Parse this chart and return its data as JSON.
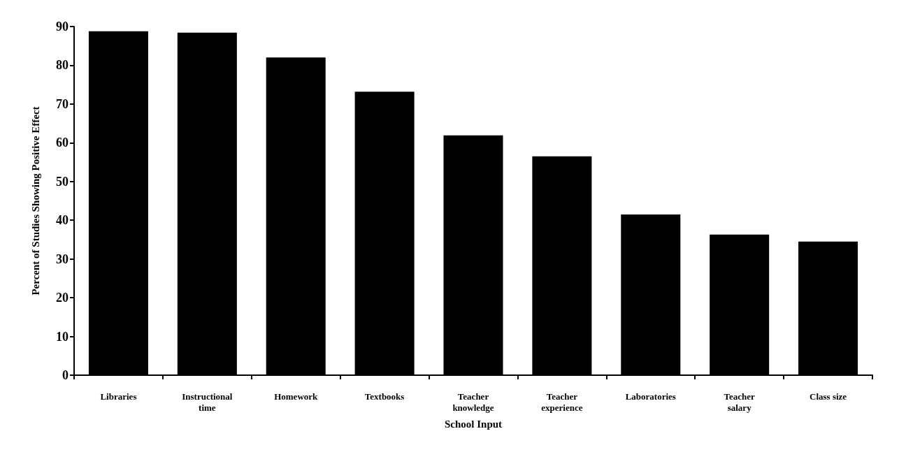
{
  "chart_data": {
    "type": "bar",
    "xlabel": "School Input",
    "ylabel": "Percent of Studies Showing Positive Effect",
    "categories": [
      "Libraries",
      "Instructional\ntime",
      "Homework",
      "Textbooks",
      "Teacher\nknowledge",
      "Teacher\nexperience",
      "Laboratories",
      "Teacher\nsalary",
      "Class size"
    ],
    "values": [
      88.8,
      88.4,
      82.0,
      73.2,
      61.9,
      56.5,
      41.5,
      36.3,
      34.5
    ],
    "color": "#000000",
    "ylim": [
      0,
      90
    ],
    "yticks": [
      0,
      10,
      20,
      30,
      40,
      50,
      60,
      70,
      80,
      90
    ],
    "grid": false
  }
}
